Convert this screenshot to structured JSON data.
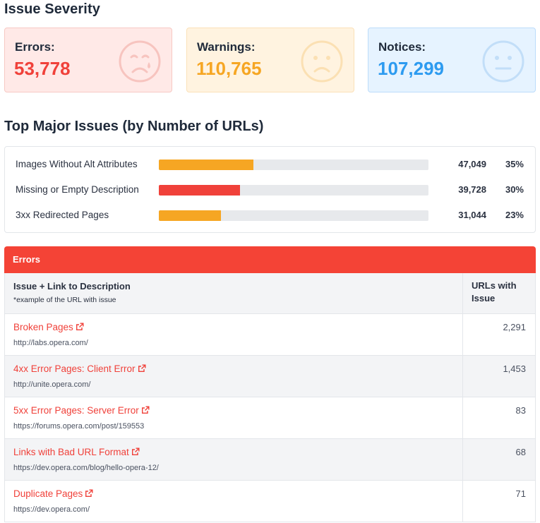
{
  "severity": {
    "title": "Issue Severity",
    "cards": [
      {
        "label": "Errors:",
        "value": "53,778",
        "icon": "sad-crying-face-icon",
        "color": "#f0413a"
      },
      {
        "label": "Warnings:",
        "value": "110,765",
        "icon": "frowning-face-icon",
        "color": "#f6a623"
      },
      {
        "label": "Notices:",
        "value": "107,299",
        "icon": "neutral-face-icon",
        "color": "#2d9bf0"
      }
    ]
  },
  "top_issues": {
    "title": "Top Major Issues (by Number of URLs)",
    "rows": [
      {
        "name": "Images Without Alt Attributes",
        "count": "47,049",
        "percent": "35%",
        "fraction": 0.35,
        "color": "#f6a623"
      },
      {
        "name": "Missing or Empty Description",
        "count": "39,728",
        "percent": "30%",
        "fraction": 0.3,
        "color": "#f0413a"
      },
      {
        "name": "3xx Redirected Pages",
        "count": "31,044",
        "percent": "23%",
        "fraction": 0.23,
        "color": "#f6a623"
      }
    ]
  },
  "errors_table": {
    "title": "Errors",
    "col1_header": "Issue + Link to Description",
    "col1_subheader": "*example of the URL with issue",
    "col2_header": "URLs with Issue",
    "rows": [
      {
        "issue": "Broken Pages",
        "url": "http://labs.opera.com/",
        "count": "2,291"
      },
      {
        "issue": "4xx Error Pages: Client Error",
        "url": "http://unite.opera.com/",
        "count": "1,453"
      },
      {
        "issue": "5xx Error Pages: Server Error",
        "url": "https://forums.opera.com/post/159553",
        "count": "83"
      },
      {
        "issue": "Links with Bad URL Format",
        "url": "https://dev.opera.com/blog/hello-opera-12/",
        "count": "68"
      },
      {
        "issue": "Duplicate Pages",
        "url": "https://dev.opera.com/",
        "count": "71"
      }
    ]
  }
}
